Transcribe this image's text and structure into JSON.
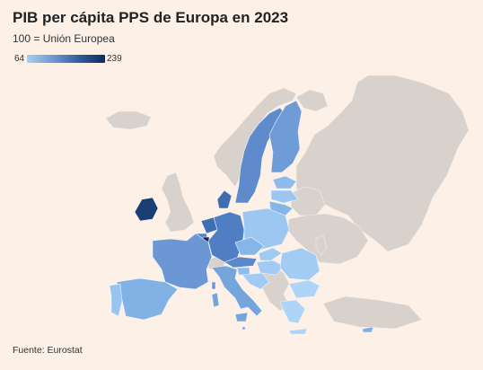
{
  "title": "PIB per cápita PPS de Europa en 2023",
  "subtitle": "100 = Unión Europea",
  "legend": {
    "min": "64",
    "max": "239"
  },
  "source": "Fuente: Eurostat",
  "colors": {
    "background": "#fdf0e6",
    "non_eu": "#d9d2cc",
    "scale_low": "#a8cff0",
    "scale_high": "#0e2c56"
  }
}
